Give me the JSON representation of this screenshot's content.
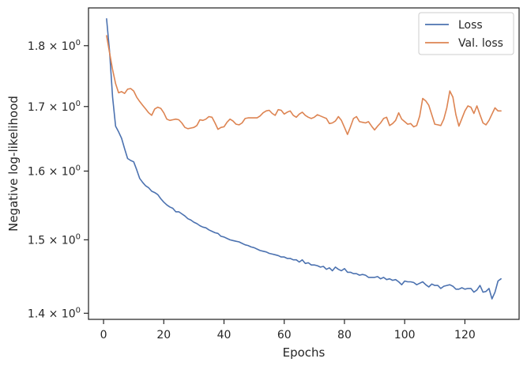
{
  "chart_data": {
    "type": "line",
    "title": "",
    "xlabel": "Epochs",
    "ylabel": "Negative log-likelihood",
    "yscale": "log",
    "xlim": [
      -5,
      138
    ],
    "ylim": [
      1.392,
      1.865
    ],
    "grid": false,
    "legend_position": "top-right",
    "x_ticks": [
      0,
      20,
      40,
      60,
      80,
      100,
      120
    ],
    "x_tick_labels": [
      "0",
      "20",
      "40",
      "60",
      "80",
      "100",
      "120"
    ],
    "y_ticks": [
      1.4,
      1.5,
      1.6,
      1.7,
      1.8
    ],
    "y_tick_mantissas": [
      "1.4",
      "1.5",
      "1.6",
      "1.7",
      "1.8"
    ],
    "y_tick_multiplier": "× 10",
    "y_tick_exponent": "0",
    "series": [
      {
        "name": "Loss",
        "color": "#4c72b0",
        "points": [
          [
            1,
            1.846
          ],
          [
            2,
            1.79
          ],
          [
            3,
            1.715
          ],
          [
            4,
            1.669
          ],
          [
            5,
            1.66
          ],
          [
            6,
            1.65
          ],
          [
            7,
            1.634
          ],
          [
            8,
            1.619
          ],
          [
            9,
            1.616
          ],
          [
            10,
            1.614
          ],
          [
            11,
            1.602
          ],
          [
            12,
            1.589
          ],
          [
            13,
            1.583
          ],
          [
            14,
            1.578
          ],
          [
            15,
            1.575
          ],
          [
            16,
            1.57
          ],
          [
            17,
            1.568
          ],
          [
            18,
            1.565
          ],
          [
            19,
            1.559
          ],
          [
            20,
            1.554
          ],
          [
            21,
            1.55
          ],
          [
            22,
            1.547
          ],
          [
            23,
            1.545
          ],
          [
            24,
            1.54
          ],
          [
            25,
            1.54
          ],
          [
            26,
            1.537
          ],
          [
            27,
            1.534
          ],
          [
            28,
            1.53
          ],
          [
            29,
            1.528
          ],
          [
            30,
            1.525
          ],
          [
            31,
            1.523
          ],
          [
            32,
            1.52
          ],
          [
            33,
            1.518
          ],
          [
            34,
            1.517
          ],
          [
            35,
            1.514
          ],
          [
            36,
            1.512
          ],
          [
            37,
            1.51
          ],
          [
            38,
            1.509
          ],
          [
            39,
            1.505
          ],
          [
            40,
            1.504
          ],
          [
            41,
            1.502
          ],
          [
            42,
            1.5
          ],
          [
            43,
            1.499
          ],
          [
            44,
            1.498
          ],
          [
            45,
            1.497
          ],
          [
            46,
            1.495
          ],
          [
            47,
            1.493
          ],
          [
            48,
            1.492
          ],
          [
            49,
            1.49
          ],
          [
            50,
            1.489
          ],
          [
            51,
            1.487
          ],
          [
            52,
            1.485
          ],
          [
            53,
            1.484
          ],
          [
            54,
            1.483
          ],
          [
            55,
            1.481
          ],
          [
            56,
            1.48
          ],
          [
            57,
            1.479
          ],
          [
            58,
            1.478
          ],
          [
            59,
            1.476
          ],
          [
            60,
            1.476
          ],
          [
            61,
            1.474
          ],
          [
            62,
            1.474
          ],
          [
            63,
            1.472
          ],
          [
            64,
            1.472
          ],
          [
            65,
            1.469
          ],
          [
            66,
            1.472
          ],
          [
            67,
            1.467
          ],
          [
            68,
            1.468
          ],
          [
            69,
            1.465
          ],
          [
            70,
            1.465
          ],
          [
            71,
            1.464
          ],
          [
            72,
            1.462
          ],
          [
            73,
            1.463
          ],
          [
            74,
            1.459
          ],
          [
            75,
            1.461
          ],
          [
            76,
            1.457
          ],
          [
            77,
            1.462
          ],
          [
            78,
            1.459
          ],
          [
            79,
            1.457
          ],
          [
            80,
            1.46
          ],
          [
            81,
            1.455
          ],
          [
            82,
            1.455
          ],
          [
            83,
            1.453
          ],
          [
            84,
            1.453
          ],
          [
            85,
            1.451
          ],
          [
            86,
            1.452
          ],
          [
            87,
            1.451
          ],
          [
            88,
            1.448
          ],
          [
            89,
            1.448
          ],
          [
            90,
            1.448
          ],
          [
            91,
            1.449
          ],
          [
            92,
            1.446
          ],
          [
            93,
            1.448
          ],
          [
            94,
            1.445
          ],
          [
            95,
            1.446
          ],
          [
            96,
            1.444
          ],
          [
            97,
            1.445
          ],
          [
            98,
            1.442
          ],
          [
            99,
            1.438
          ],
          [
            100,
            1.443
          ],
          [
            101,
            1.442
          ],
          [
            102,
            1.442
          ],
          [
            103,
            1.441
          ],
          [
            104,
            1.438
          ],
          [
            105,
            1.44
          ],
          [
            106,
            1.442
          ],
          [
            107,
            1.438
          ],
          [
            108,
            1.435
          ],
          [
            109,
            1.439
          ],
          [
            110,
            1.437
          ],
          [
            111,
            1.437
          ],
          [
            112,
            1.433
          ],
          [
            113,
            1.436
          ],
          [
            114,
            1.437
          ],
          [
            115,
            1.438
          ],
          [
            116,
            1.436
          ],
          [
            117,
            1.432
          ],
          [
            118,
            1.432
          ],
          [
            119,
            1.434
          ],
          [
            120,
            1.432
          ],
          [
            121,
            1.433
          ],
          [
            122,
            1.433
          ],
          [
            123,
            1.428
          ],
          [
            124,
            1.431
          ],
          [
            125,
            1.437
          ],
          [
            126,
            1.428
          ],
          [
            127,
            1.429
          ],
          [
            128,
            1.433
          ],
          [
            129,
            1.419
          ],
          [
            130,
            1.428
          ],
          [
            131,
            1.443
          ],
          [
            132,
            1.446
          ]
        ]
      },
      {
        "name": "Val. loss",
        "color": "#dd8452",
        "points": [
          [
            1,
            1.817
          ],
          [
            2,
            1.788
          ],
          [
            3,
            1.76
          ],
          [
            4,
            1.737
          ],
          [
            5,
            1.722
          ],
          [
            6,
            1.724
          ],
          [
            7,
            1.721
          ],
          [
            8,
            1.728
          ],
          [
            9,
            1.729
          ],
          [
            10,
            1.725
          ],
          [
            11,
            1.715
          ],
          [
            12,
            1.708
          ],
          [
            13,
            1.702
          ],
          [
            14,
            1.696
          ],
          [
            15,
            1.69
          ],
          [
            16,
            1.686
          ],
          [
            17,
            1.696
          ],
          [
            18,
            1.699
          ],
          [
            19,
            1.697
          ],
          [
            20,
            1.69
          ],
          [
            21,
            1.68
          ],
          [
            22,
            1.678
          ],
          [
            23,
            1.679
          ],
          [
            24,
            1.68
          ],
          [
            25,
            1.679
          ],
          [
            26,
            1.674
          ],
          [
            27,
            1.667
          ],
          [
            28,
            1.665
          ],
          [
            29,
            1.666
          ],
          [
            30,
            1.667
          ],
          [
            31,
            1.67
          ],
          [
            32,
            1.679
          ],
          [
            33,
            1.678
          ],
          [
            34,
            1.68
          ],
          [
            35,
            1.684
          ],
          [
            36,
            1.683
          ],
          [
            37,
            1.674
          ],
          [
            38,
            1.664
          ],
          [
            39,
            1.667
          ],
          [
            40,
            1.668
          ],
          [
            41,
            1.675
          ],
          [
            42,
            1.68
          ],
          [
            43,
            1.677
          ],
          [
            44,
            1.672
          ],
          [
            45,
            1.671
          ],
          [
            46,
            1.674
          ],
          [
            47,
            1.681
          ],
          [
            48,
            1.682
          ],
          [
            49,
            1.682
          ],
          [
            50,
            1.682
          ],
          [
            51,
            1.682
          ],
          [
            52,
            1.685
          ],
          [
            53,
            1.69
          ],
          [
            54,
            1.693
          ],
          [
            55,
            1.694
          ],
          [
            56,
            1.689
          ],
          [
            57,
            1.686
          ],
          [
            58,
            1.695
          ],
          [
            59,
            1.694
          ],
          [
            60,
            1.688
          ],
          [
            61,
            1.691
          ],
          [
            62,
            1.693
          ],
          [
            63,
            1.686
          ],
          [
            64,
            1.683
          ],
          [
            65,
            1.688
          ],
          [
            66,
            1.691
          ],
          [
            67,
            1.686
          ],
          [
            68,
            1.683
          ],
          [
            69,
            1.681
          ],
          [
            70,
            1.683
          ],
          [
            71,
            1.687
          ],
          [
            72,
            1.685
          ],
          [
            73,
            1.683
          ],
          [
            74,
            1.681
          ],
          [
            75,
            1.673
          ],
          [
            76,
            1.674
          ],
          [
            77,
            1.677
          ],
          [
            78,
            1.684
          ],
          [
            79,
            1.678
          ],
          [
            80,
            1.667
          ],
          [
            81,
            1.656
          ],
          [
            82,
            1.668
          ],
          [
            83,
            1.681
          ],
          [
            84,
            1.684
          ],
          [
            85,
            1.676
          ],
          [
            86,
            1.675
          ],
          [
            87,
            1.674
          ],
          [
            88,
            1.676
          ],
          [
            89,
            1.669
          ],
          [
            90,
            1.663
          ],
          [
            91,
            1.669
          ],
          [
            92,
            1.674
          ],
          [
            93,
            1.681
          ],
          [
            94,
            1.683
          ],
          [
            95,
            1.67
          ],
          [
            96,
            1.673
          ],
          [
            97,
            1.678
          ],
          [
            98,
            1.69
          ],
          [
            99,
            1.68
          ],
          [
            100,
            1.676
          ],
          [
            101,
            1.672
          ],
          [
            102,
            1.673
          ],
          [
            103,
            1.668
          ],
          [
            104,
            1.67
          ],
          [
            105,
            1.685
          ],
          [
            106,
            1.713
          ],
          [
            107,
            1.709
          ],
          [
            108,
            1.702
          ],
          [
            109,
            1.687
          ],
          [
            110,
            1.672
          ],
          [
            111,
            1.671
          ],
          [
            112,
            1.67
          ],
          [
            113,
            1.68
          ],
          [
            114,
            1.698
          ],
          [
            115,
            1.725
          ],
          [
            116,
            1.715
          ],
          [
            117,
            1.687
          ],
          [
            118,
            1.669
          ],
          [
            119,
            1.681
          ],
          [
            120,
            1.693
          ],
          [
            121,
            1.701
          ],
          [
            122,
            1.699
          ],
          [
            123,
            1.689
          ],
          [
            124,
            1.701
          ],
          [
            125,
            1.687
          ],
          [
            126,
            1.674
          ],
          [
            127,
            1.671
          ],
          [
            128,
            1.678
          ],
          [
            129,
            1.688
          ],
          [
            130,
            1.698
          ],
          [
            131,
            1.693
          ],
          [
            132,
            1.693
          ]
        ]
      }
    ]
  }
}
